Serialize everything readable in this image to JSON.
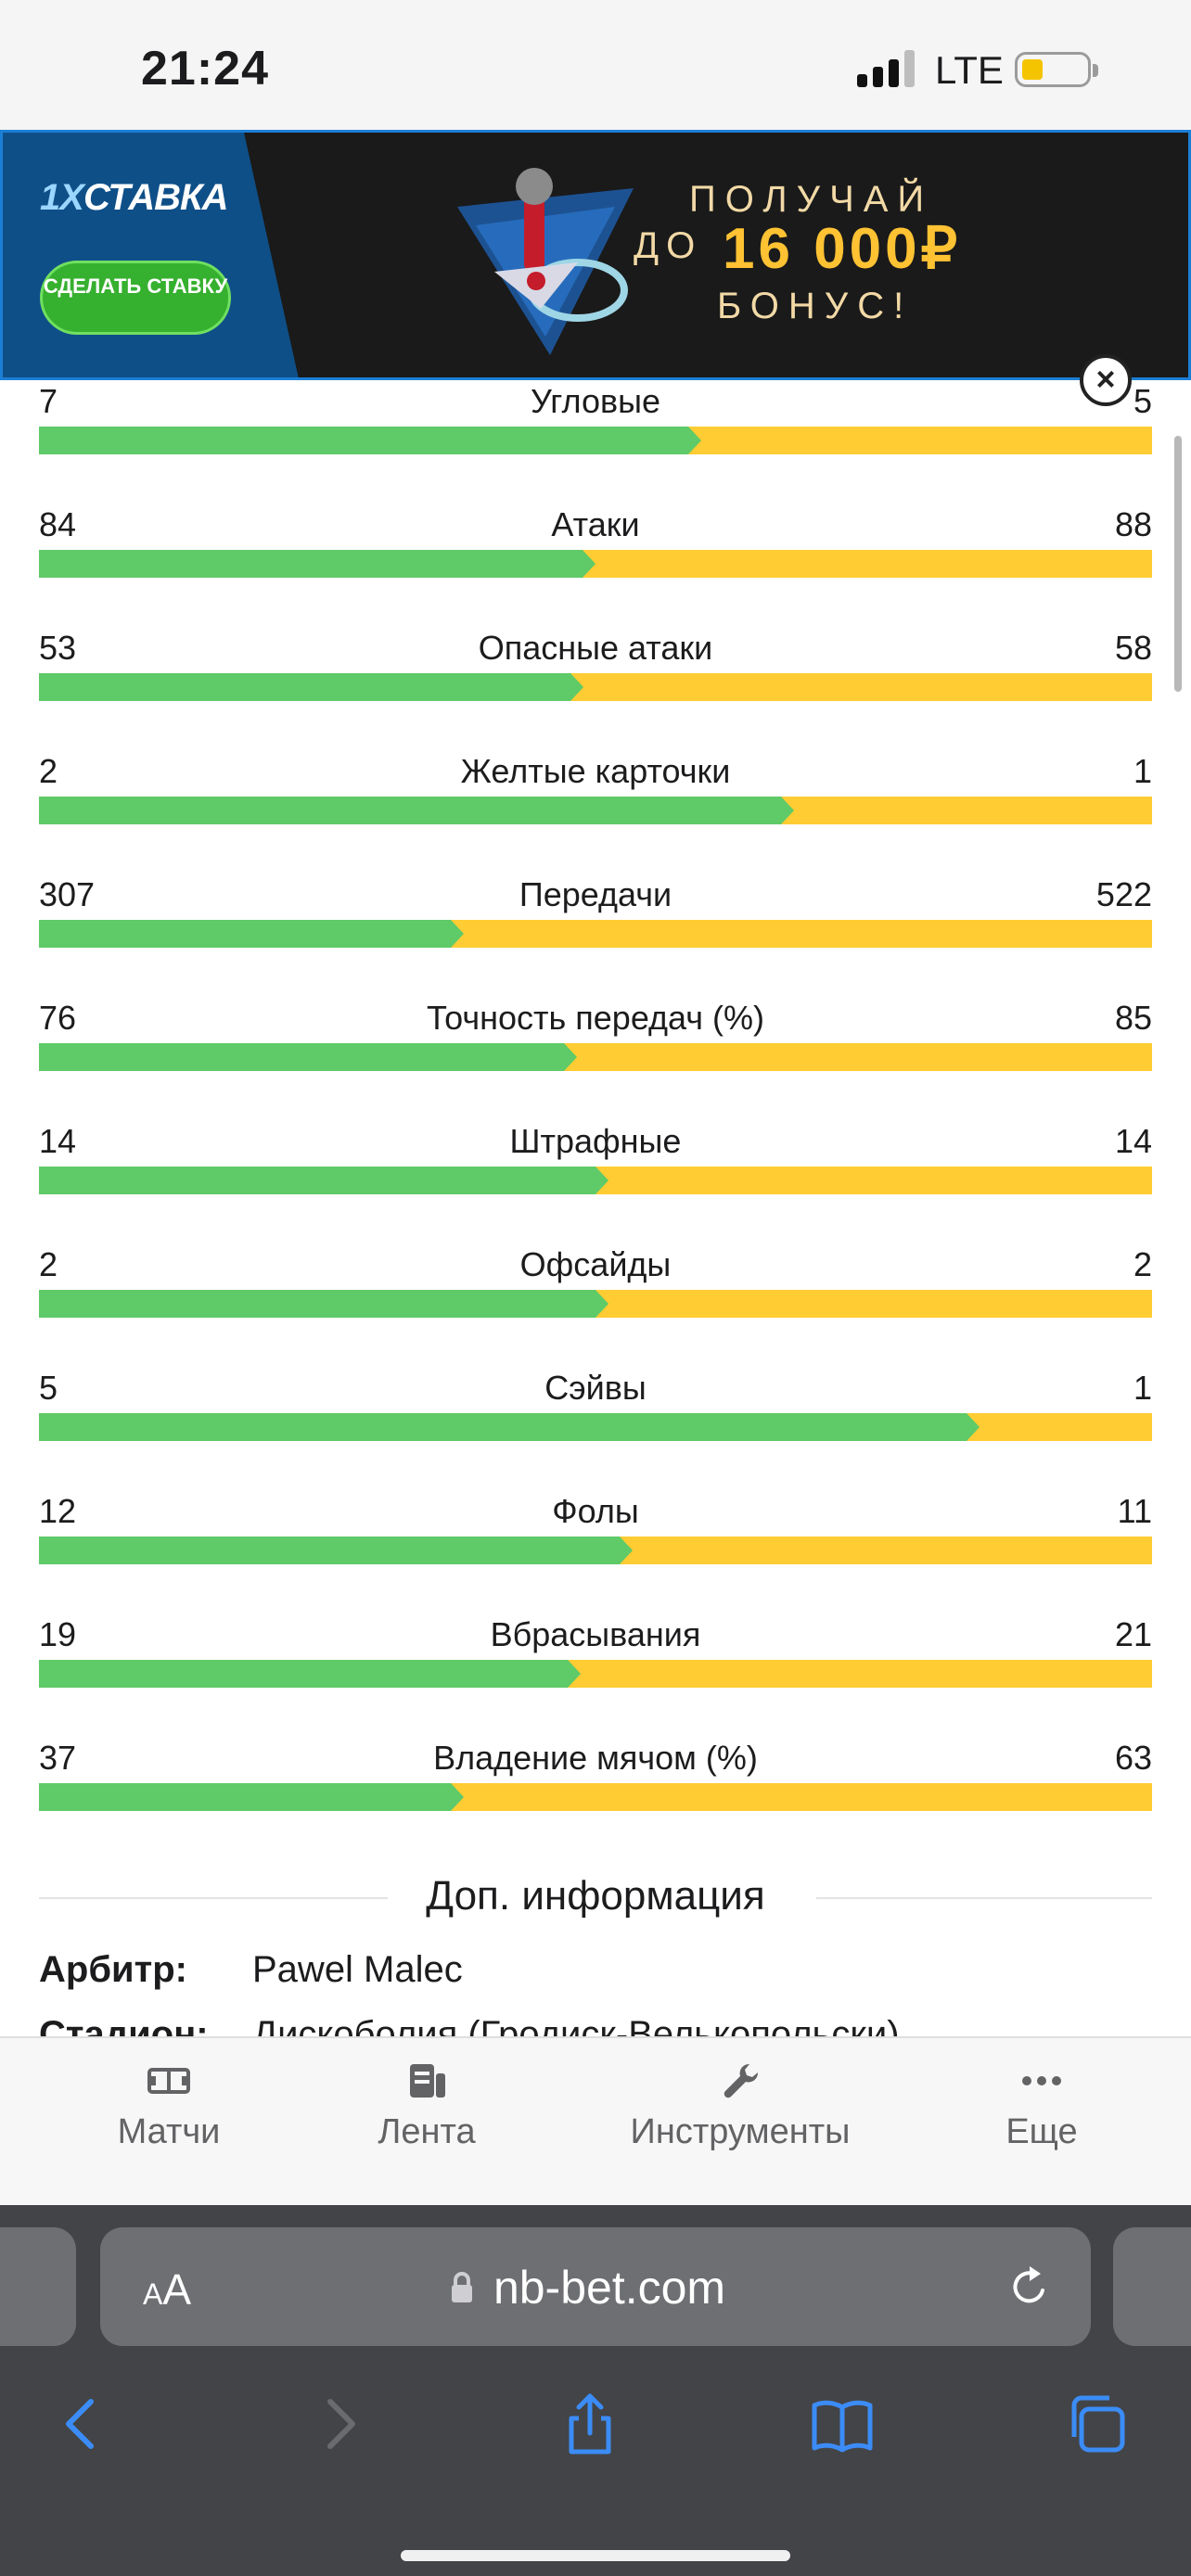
{
  "status_bar": {
    "time": "21:24",
    "network": "LTE"
  },
  "banner": {
    "brand_prefix": "1X",
    "brand_name": "СТАВКА",
    "cta": "СДЕЛАТЬ СТАВКУ",
    "promo_line1": "ПОЛУЧАЙ",
    "promo_line2": "ДО",
    "promo_amount": "16 000₽",
    "promo_line3": "БОНУС!",
    "close_icon": "close-icon"
  },
  "stats": [
    {
      "name": "Угловые",
      "left": "7",
      "right": "5"
    },
    {
      "name": "Атаки",
      "left": "84",
      "right": "88"
    },
    {
      "name": "Опасные атаки",
      "left": "53",
      "right": "58"
    },
    {
      "name": "Желтые карточки",
      "left": "2",
      "right": "1"
    },
    {
      "name": "Передачи",
      "left": "307",
      "right": "522"
    },
    {
      "name": "Точность передач (%)",
      "left": "76",
      "right": "85"
    },
    {
      "name": "Штрафные",
      "left": "14",
      "right": "14"
    },
    {
      "name": "Офсайды",
      "left": "2",
      "right": "2"
    },
    {
      "name": "Сэйвы",
      "left": "5",
      "right": "1"
    },
    {
      "name": "Фолы",
      "left": "12",
      "right": "11"
    },
    {
      "name": "Вбрасывания",
      "left": "19",
      "right": "21"
    },
    {
      "name": "Владение мячом (%)",
      "left": "37",
      "right": "63"
    }
  ],
  "extra_info": {
    "title": "Доп. информация",
    "referee_label": "Арбитр:",
    "referee_value": "Pawel Malec",
    "stadium_label": "Стадион:",
    "stadium_value": "Дискоболия (Гродиск-Велькопольски)"
  },
  "site_nav": [
    {
      "label": "Матчи",
      "icon": "field-icon"
    },
    {
      "label": "Лента",
      "icon": "feed-icon"
    },
    {
      "label": "Инструменты",
      "icon": "wrench-icon"
    },
    {
      "label": "Еще",
      "icon": "more-icon"
    }
  ],
  "browser": {
    "text_size": "AA",
    "url": "nb-bet.com",
    "toolbar": [
      "back-icon",
      "forward-icon",
      "share-icon",
      "bookmarks-icon",
      "tabs-icon"
    ]
  },
  "colors": {
    "home_bar": "#5fca68",
    "away_bar": "#ffcc33",
    "banner_border": "#1c7fd6"
  }
}
